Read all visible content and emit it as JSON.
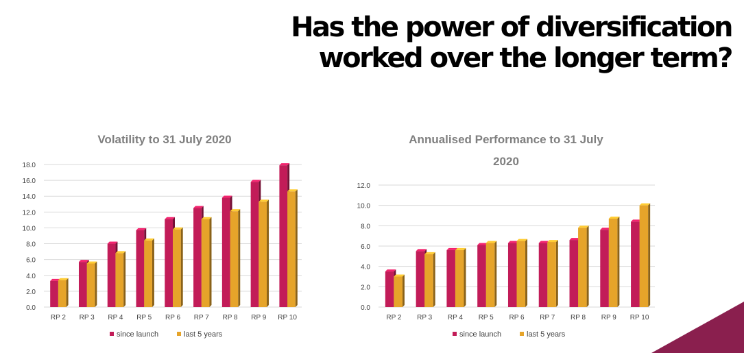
{
  "page": {
    "headline_line1": "Has the power of diversification",
    "headline_line2": "worked over the longer term?"
  },
  "colors": {
    "since_launch": "#c21c58",
    "last_5_years": "#e6a42a",
    "accent_corner": "#8a1f4e",
    "title_gray": "#7f7f7f",
    "grid": "#d9d9d9"
  },
  "chart_data": [
    {
      "type": "bar",
      "title": "Volatility to 31 July 2020",
      "title_lines": [
        "Volatility to 31 July 2020"
      ],
      "categories": [
        "RP 2",
        "RP 3",
        "RP 4",
        "RP 5",
        "RP 6",
        "RP 7",
        "RP 8",
        "RP 9",
        "RP 10"
      ],
      "series": [
        {
          "name": "since launch",
          "values": [
            3.3,
            5.7,
            8.0,
            9.7,
            11.1,
            12.5,
            13.8,
            15.8,
            17.9
          ]
        },
        {
          "name": "last 5 years",
          "values": [
            3.4,
            5.5,
            6.8,
            8.4,
            9.8,
            11.1,
            12.1,
            13.3,
            14.6
          ]
        }
      ],
      "ylim": [
        0,
        18
      ],
      "yticks": [
        "0.0",
        "2.0",
        "4.0",
        "6.0",
        "8.0",
        "10.0",
        "12.0",
        "14.0",
        "16.0",
        "18.0"
      ],
      "grid": true,
      "legend": "bottom"
    },
    {
      "type": "bar",
      "title": "Annualised Performance to 31 July 2020",
      "title_lines": [
        "Annualised Performance to 31 July",
        "2020"
      ],
      "categories": [
        "RP 2",
        "RP 3",
        "RP 4",
        "RP 5",
        "RP 6",
        "RP 7",
        "RP 8",
        "RP 9",
        "RP 10"
      ],
      "series": [
        {
          "name": "since launch",
          "values": [
            3.5,
            5.5,
            5.6,
            6.1,
            6.3,
            6.3,
            6.6,
            7.6,
            8.4
          ]
        },
        {
          "name": "last 5 years",
          "values": [
            3.0,
            5.2,
            5.6,
            6.3,
            6.5,
            6.4,
            7.8,
            8.7,
            10.0
          ]
        }
      ],
      "ylim": [
        0,
        12
      ],
      "yticks": [
        "0.0",
        "2.0",
        "4.0",
        "6.0",
        "8.0",
        "10.0",
        "12.0"
      ],
      "grid": true,
      "legend": "bottom"
    }
  ]
}
